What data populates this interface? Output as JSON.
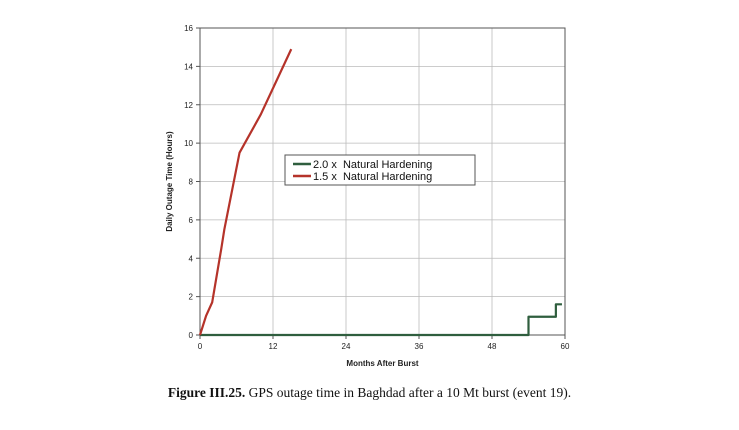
{
  "chart_data": {
    "type": "line",
    "xlabel": "Months After Burst",
    "ylabel": "Daily Outage Time (Hours)",
    "xlim": [
      0,
      60
    ],
    "ylim": [
      0,
      16
    ],
    "xticks": [
      0,
      12,
      24,
      36,
      48,
      60
    ],
    "yticks": [
      0,
      2,
      4,
      6,
      8,
      10,
      12,
      14,
      16
    ],
    "grid": true,
    "legend_position": "center-right",
    "series": [
      {
        "name": "2.0 x  Natural Hardening",
        "color": "#2f5e3e",
        "points": [
          [
            0,
            0
          ],
          [
            54,
            0
          ],
          [
            54,
            0.95
          ],
          [
            58.5,
            0.95
          ],
          [
            58.5,
            1.6
          ],
          [
            59.5,
            1.6
          ]
        ]
      },
      {
        "name": "1.5 x  Natural Hardening",
        "color": "#b5332a",
        "points": [
          [
            0,
            0
          ],
          [
            1,
            1
          ],
          [
            2,
            1.7
          ],
          [
            3.5,
            4.5
          ],
          [
            4,
            5.5
          ],
          [
            6.5,
            9.5
          ],
          [
            10,
            11.5
          ],
          [
            15,
            14.9
          ]
        ]
      }
    ]
  },
  "caption": {
    "label": "Figure III.25.",
    "text": " GPS outage time in Baghdad after a 10 Mt burst (event 19)."
  }
}
